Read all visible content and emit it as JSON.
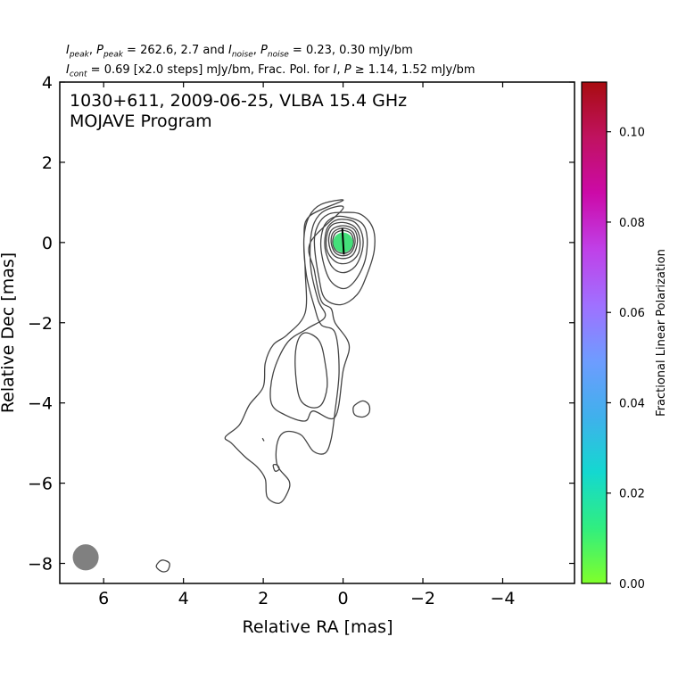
{
  "header": {
    "line1": {
      "i": "I",
      "i_sub": "peak",
      "sep1": ", ",
      "p": "P",
      "p_sub": "peak",
      "mid1": " = 262.6, 2.7 and ",
      "i2": "I",
      "i2_sub": "noise",
      "sep2": ", ",
      "p2": "P",
      "p2_sub": "noise",
      "tail": " = 0.23, 0.30 mJy/bm"
    },
    "line2": {
      "i": "I",
      "i_sub": "cont",
      "mid": " = 0.69 [x2.0 steps] mJy/bm, Frac. Pol. for ",
      "i2": "I",
      "sep": ", ",
      "p": "P",
      "tail": " ≥ 1.14, 1.52 mJy/bm"
    }
  },
  "chart_data": {
    "type": "contour",
    "title_line1": "1030+611, 2009-06-25, VLBA 15.4 GHz",
    "title_line2": "MOJAVE Program",
    "xlabel": "Relative RA [mas]",
    "ylabel": "Relative Dec [mas]",
    "xlim": [
      7.1,
      -5.8
    ],
    "ylim": [
      -8.5,
      4.0
    ],
    "xticks": [
      6,
      4,
      2,
      0,
      -2,
      -4
    ],
    "xtick_labels": [
      "6",
      "4",
      "2",
      "0",
      "−2",
      "−4"
    ],
    "yticks": [
      4,
      2,
      0,
      -2,
      -4,
      -6,
      -8
    ],
    "ytick_labels": [
      "4",
      "2",
      "0",
      "−2",
      "−4",
      "−6",
      "−8"
    ],
    "colorbar": {
      "label": "Fractional Linear Polarization",
      "range": [
        0.0,
        0.111
      ],
      "ticks": [
        0.0,
        0.02,
        0.04,
        0.06,
        0.08,
        0.1
      ],
      "tick_labels": [
        "0.00",
        "0.02",
        "0.04",
        "0.06",
        "0.08",
        "0.10"
      ],
      "colors": [
        "#80ff2a",
        "#30ee80",
        "#14d8d0",
        "#40b0ec",
        "#6e9cff",
        "#a070ff",
        "#c040e8",
        "#cc0aa8",
        "#c01260",
        "#a80c10"
      ]
    },
    "beam": {
      "x": 6.45,
      "y": -7.85,
      "major_mas": 0.65,
      "minor_mas": 0.65,
      "color": "#808080"
    },
    "polarized_core": {
      "x": 0.0,
      "y": 0.0,
      "width_mas": 0.5,
      "height_mas": 0.5,
      "frac_pol": 0.01,
      "color": "#44e07a"
    },
    "evpa_vectors": [
      {
        "x1": 0.02,
        "y1": 0.35,
        "x2": -0.02,
        "y2": -0.3
      }
    ],
    "contour_levels_mjy": [
      0.69,
      1.38,
      2.76,
      5.52,
      11.04,
      22.08,
      44.16,
      88.32,
      176.64
    ],
    "contours": [
      {
        "name": "contour-1",
        "points": [
          [
            0,
            1.05
          ],
          [
            0.55,
            0.95
          ],
          [
            0.85,
            0.65
          ],
          [
            0.98,
            0.1
          ],
          [
            0.92,
            -0.8
          ],
          [
            0.72,
            -1.6
          ],
          [
            0.55,
            -2.05
          ],
          [
            0.2,
            -2.25
          ],
          [
            0.1,
            -3.2
          ],
          [
            0.2,
            -4.2
          ],
          [
            0.3,
            -4.9
          ],
          [
            0.45,
            -5.25
          ],
          [
            0.75,
            -5.2
          ],
          [
            1.05,
            -4.8
          ],
          [
            1.45,
            -4.72
          ],
          [
            1.65,
            -5.0
          ],
          [
            1.65,
            -5.55
          ],
          [
            1.35,
            -5.95
          ],
          [
            1.4,
            -6.25
          ],
          [
            1.6,
            -6.5
          ],
          [
            1.9,
            -6.35
          ],
          [
            1.95,
            -5.9
          ],
          [
            2.15,
            -5.6
          ],
          [
            2.45,
            -5.35
          ],
          [
            2.8,
            -5.0
          ],
          [
            2.95,
            -4.85
          ],
          [
            2.6,
            -4.55
          ],
          [
            2.35,
            -4.05
          ],
          [
            2.0,
            -3.6
          ],
          [
            1.95,
            -3.0
          ],
          [
            1.75,
            -2.55
          ],
          [
            1.4,
            -2.3
          ],
          [
            0.95,
            -1.75
          ],
          [
            0.95,
            -0.7
          ],
          [
            0.98,
            0.1
          ],
          [
            0.85,
            0.65
          ]
        ],
        "closed": true,
        "skip": 0
      },
      {
        "name": "contour-2",
        "points": [
          [
            0,
            0.85
          ],
          [
            0.45,
            0.8
          ],
          [
            0.72,
            0.5
          ],
          [
            0.82,
            0.0
          ],
          [
            0.8,
            -0.7
          ],
          [
            0.62,
            -1.45
          ],
          [
            0.45,
            -1.85
          ],
          [
            0.9,
            -2.15
          ],
          [
            1.4,
            -2.5
          ],
          [
            1.75,
            -3.25
          ],
          [
            1.8,
            -4.0
          ],
          [
            1.45,
            -4.3
          ],
          [
            0.95,
            -4.45
          ],
          [
            0.75,
            -4.2
          ],
          [
            0.2,
            -4.35
          ],
          [
            0.0,
            -3.2
          ],
          [
            -0.15,
            -2.55
          ],
          [
            0.2,
            -2.0
          ],
          [
            0.3,
            -1.65
          ],
          [
            0.55,
            -1.45
          ],
          [
            0.72,
            -0.7
          ],
          [
            0.82,
            0.0
          ]
        ],
        "closed": true,
        "skip": 0
      },
      {
        "name": "contour-3",
        "points": [
          [
            0,
            0.75
          ],
          [
            0.38,
            0.7
          ],
          [
            0.62,
            0.45
          ],
          [
            0.72,
            0.0
          ],
          [
            0.6,
            -0.9
          ],
          [
            0.45,
            -1.4
          ],
          [
            0.05,
            -1.55
          ],
          [
            -0.35,
            -1.3
          ],
          [
            -0.6,
            -0.8
          ],
          [
            -0.78,
            -0.2
          ],
          [
            -0.75,
            0.35
          ],
          [
            -0.45,
            0.7
          ]
        ],
        "closed": true,
        "skip": 0
      },
      {
        "name": "contour-4",
        "points": [
          [
            0,
            0.65
          ],
          [
            0.3,
            0.6
          ],
          [
            0.5,
            0.35
          ],
          [
            0.55,
            -0.2
          ],
          [
            0.35,
            -0.9
          ],
          [
            0.0,
            -1.15
          ],
          [
            -0.3,
            -0.95
          ],
          [
            -0.55,
            -0.45
          ],
          [
            -0.6,
            0.15
          ],
          [
            -0.45,
            0.5
          ]
        ],
        "closed": true,
        "skip": 0
      },
      {
        "name": "contour-5",
        "points": [
          [
            0,
            0.58
          ],
          [
            0.25,
            0.52
          ],
          [
            0.42,
            0.3
          ],
          [
            0.45,
            -0.15
          ],
          [
            0.28,
            -0.6
          ],
          [
            0.0,
            -0.75
          ],
          [
            -0.3,
            -0.6
          ],
          [
            -0.48,
            -0.2
          ],
          [
            -0.48,
            0.2
          ],
          [
            -0.3,
            0.5
          ]
        ],
        "closed": true,
        "skip": 0
      },
      {
        "name": "contour-6",
        "points": [
          [
            0,
            0.5
          ],
          [
            0.3,
            0.42
          ],
          [
            0.42,
            0.1
          ],
          [
            0.38,
            -0.25
          ],
          [
            0.15,
            -0.5
          ],
          [
            -0.15,
            -0.5
          ],
          [
            -0.38,
            -0.28
          ],
          [
            -0.42,
            0.08
          ],
          [
            -0.3,
            0.38
          ]
        ],
        "closed": true,
        "skip": 0
      },
      {
        "name": "contour-7",
        "points": [
          [
            0,
            0.42
          ],
          [
            0.28,
            0.32
          ],
          [
            0.36,
            0.02
          ],
          [
            0.25,
            -0.3
          ],
          [
            0.0,
            -0.4
          ],
          [
            -0.25,
            -0.3
          ],
          [
            -0.36,
            0.02
          ],
          [
            -0.28,
            0.32
          ]
        ],
        "closed": true,
        "skip": 0
      },
      {
        "name": "contour-8",
        "points": [
          [
            0,
            0.36
          ],
          [
            0.24,
            0.26
          ],
          [
            0.3,
            0.0
          ],
          [
            0.2,
            -0.25
          ],
          [
            0.0,
            -0.33
          ],
          [
            -0.2,
            -0.25
          ],
          [
            -0.3,
            0.0
          ],
          [
            -0.24,
            0.26
          ]
        ],
        "closed": true,
        "skip": 0
      },
      {
        "name": "contour-9",
        "points": [
          [
            0,
            0.3
          ],
          [
            0.2,
            0.22
          ],
          [
            0.26,
            0.0
          ],
          [
            0.18,
            -0.2
          ],
          [
            0.0,
            -0.27
          ],
          [
            -0.18,
            -0.2
          ],
          [
            -0.26,
            0.0
          ],
          [
            -0.2,
            0.22
          ]
        ],
        "closed": true,
        "skip": 0
      },
      {
        "name": "contour-knot-inner",
        "points": [
          [
            0.95,
            -2.25
          ],
          [
            1.15,
            -2.5
          ],
          [
            1.2,
            -3.1
          ],
          [
            1.1,
            -3.85
          ],
          [
            0.85,
            -4.1
          ],
          [
            0.55,
            -4.05
          ],
          [
            0.4,
            -3.6
          ],
          [
            0.45,
            -3.0
          ],
          [
            0.6,
            -2.45
          ]
        ],
        "closed": true,
        "skip": 0
      },
      {
        "name": "contour-island-east",
        "points": [
          [
            -0.3,
            -4.05
          ],
          [
            -0.5,
            -3.95
          ],
          [
            -0.65,
            -4.05
          ],
          [
            -0.65,
            -4.25
          ],
          [
            -0.5,
            -4.35
          ],
          [
            -0.3,
            -4.3
          ],
          [
            -0.25,
            -4.15
          ]
        ],
        "closed": true,
        "skip": 0
      },
      {
        "name": "contour-island-south",
        "points": [
          [
            1.65,
            -5.55
          ],
          [
            1.75,
            -5.55
          ],
          [
            1.7,
            -5.7
          ],
          [
            1.6,
            -5.65
          ]
        ],
        "closed": true,
        "skip": 0
      },
      {
        "name": "contour-island-tiny",
        "points": [
          [
            2.02,
            -4.88
          ],
          [
            1.98,
            -4.95
          ]
        ],
        "closed": false,
        "skip": 0
      },
      {
        "name": "contour-island-far",
        "points": [
          [
            4.5,
            -7.92
          ],
          [
            4.35,
            -8.0
          ],
          [
            4.4,
            -8.18
          ],
          [
            4.55,
            -8.2
          ],
          [
            4.68,
            -8.08
          ],
          [
            4.6,
            -7.95
          ]
        ],
        "closed": true,
        "skip": 0
      }
    ]
  }
}
